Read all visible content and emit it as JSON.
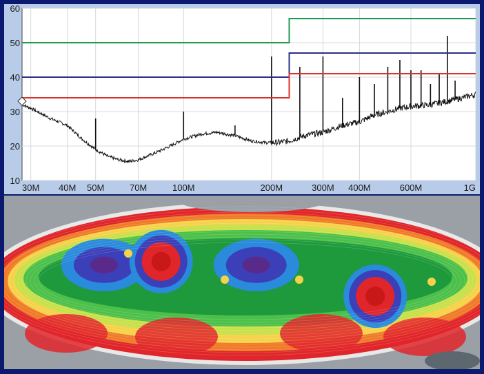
{
  "chart_data": [
    {
      "type": "line",
      "xscale": "log",
      "xlim": [
        28,
        1000
      ],
      "ylim": [
        10,
        60
      ],
      "grid": true,
      "x_tick_labels": [
        "30M",
        "40M",
        "50M",
        "70M",
        "100M",
        "200M",
        "300M",
        "400M",
        "600M",
        "1G"
      ],
      "x_tick_values": [
        30,
        40,
        50,
        70,
        100,
        200,
        300,
        400,
        600,
        1000
      ],
      "y_tick_labels": [
        "10",
        "20",
        "30",
        "40",
        "50",
        "60"
      ],
      "y_tick_values": [
        10,
        20,
        30,
        40,
        50,
        60
      ],
      "limit_lines": [
        {
          "color": "#1d9a4e",
          "points": [
            [
              28,
              50
            ],
            [
              230,
              50
            ],
            [
              230,
              57
            ],
            [
              1000,
              57
            ]
          ]
        },
        {
          "color": "#2a2f8a",
          "points": [
            [
              28,
              40
            ],
            [
              230,
              40
            ],
            [
              230,
              47
            ],
            [
              1000,
              47
            ]
          ]
        },
        {
          "color": "#d9322a",
          "points": [
            [
              28,
              34
            ],
            [
              230,
              34
            ],
            [
              230,
              41
            ],
            [
              1000,
              41
            ]
          ]
        }
      ],
      "series": [
        {
          "color": "#111111",
          "baseline": [
            [
              28,
              32
            ],
            [
              30,
              31
            ],
            [
              35,
              28
            ],
            [
              40,
              26
            ],
            [
              45,
              22
            ],
            [
              50,
              19
            ],
            [
              55,
              17
            ],
            [
              60,
              16
            ],
            [
              65,
              15.5
            ],
            [
              70,
              16
            ],
            [
              80,
              18
            ],
            [
              90,
              20
            ],
            [
              100,
              22
            ],
            [
              115,
              23.5
            ],
            [
              130,
              24
            ],
            [
              150,
              23
            ],
            [
              170,
              21.5
            ],
            [
              190,
              21
            ],
            [
              210,
              21
            ],
            [
              230,
              21.5
            ],
            [
              260,
              23
            ],
            [
              300,
              24
            ],
            [
              350,
              26
            ],
            [
              400,
              27
            ],
            [
              450,
              29
            ],
            [
              500,
              30
            ],
            [
              550,
              31
            ],
            [
              600,
              31.5
            ],
            [
              700,
              32
            ],
            [
              800,
              33
            ],
            [
              900,
              34
            ],
            [
              1000,
              35
            ]
          ],
          "peaks": [
            [
              50,
              28
            ],
            [
              100,
              30
            ],
            [
              150,
              26
            ],
            [
              200,
              46
            ],
            [
              250,
              43
            ],
            [
              300,
              46
            ],
            [
              350,
              34
            ],
            [
              400,
              40
            ],
            [
              450,
              38
            ],
            [
              500,
              43
            ],
            [
              550,
              45
            ],
            [
              600,
              42
            ],
            [
              650,
              42
            ],
            [
              700,
              38
            ],
            [
              750,
              41
            ],
            [
              800,
              52
            ],
            [
              850,
              39
            ]
          ]
        }
      ],
      "marker": {
        "x": 28,
        "y": 33
      }
    },
    {
      "type": "heatmap",
      "palette": [
        "#5c6770",
        "#9aa0a6",
        "#e8e8e8",
        "#e0262a",
        "#f07a28",
        "#f6d24a",
        "#c8e04a",
        "#4cc04a",
        "#1e9a3c",
        "#2a8adc",
        "#3b3fb8",
        "#5a2a8a"
      ],
      "blobs": [
        {
          "cx": 0.21,
          "cy": 0.4,
          "level": 10
        },
        {
          "cx": 0.33,
          "cy": 0.38,
          "level": 3
        },
        {
          "cx": 0.53,
          "cy": 0.4,
          "level": 10
        },
        {
          "cx": 0.78,
          "cy": 0.58,
          "level": 3
        }
      ]
    }
  ]
}
